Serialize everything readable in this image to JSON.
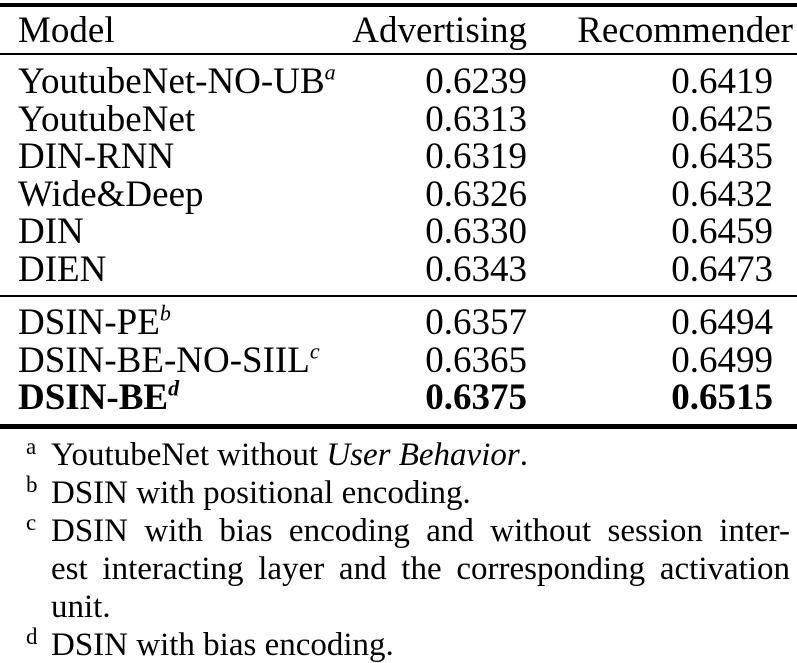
{
  "table": {
    "header": {
      "model": "Model",
      "advertising": "Advertising",
      "recommender": "Recommender"
    },
    "group1": [
      {
        "model": "YoutubeNet-NO-UB",
        "sup": "a",
        "advertising": "0.6239",
        "recommender": "0.6419"
      },
      {
        "model": "YoutubeNet",
        "sup": "",
        "advertising": "0.6313",
        "recommender": "0.6425"
      },
      {
        "model": "DIN-RNN",
        "sup": "",
        "advertising": "0.6319",
        "recommender": "0.6435"
      },
      {
        "model": "Wide&Deep",
        "sup": "",
        "advertising": "0.6326",
        "recommender": "0.6432"
      },
      {
        "model": "DIN",
        "sup": "",
        "advertising": "0.6330",
        "recommender": "0.6459"
      },
      {
        "model": "DIEN",
        "sup": "",
        "advertising": "0.6343",
        "recommender": "0.6473"
      }
    ],
    "group2": [
      {
        "model": "DSIN-PE",
        "sup": "b",
        "advertising": "0.6357",
        "recommender": "0.6494"
      },
      {
        "model": "DSIN-BE-NO-SIIL",
        "sup": "c",
        "advertising": "0.6365",
        "recommender": "0.6499"
      },
      {
        "model": "DSIN-BE",
        "sup": "d",
        "advertising": "0.6375",
        "recommender": "0.6515"
      }
    ]
  },
  "footnotes": {
    "a": {
      "marker": "a",
      "prefix": "YoutubeNet without ",
      "italic": "User Behavior",
      "suffix": "."
    },
    "b": {
      "marker": "b",
      "text": "DSIN with positional encoding."
    },
    "c": {
      "marker": "c",
      "lines": [
        "DSIN with bias encoding and without session inter-",
        "est interacting layer and the corresponding activation",
        "unit."
      ]
    },
    "d": {
      "marker": "d",
      "text": "DSIN with bias encoding."
    }
  },
  "colors": {
    "text": "#000000",
    "background": "#ffffff",
    "rule": "#000000"
  }
}
